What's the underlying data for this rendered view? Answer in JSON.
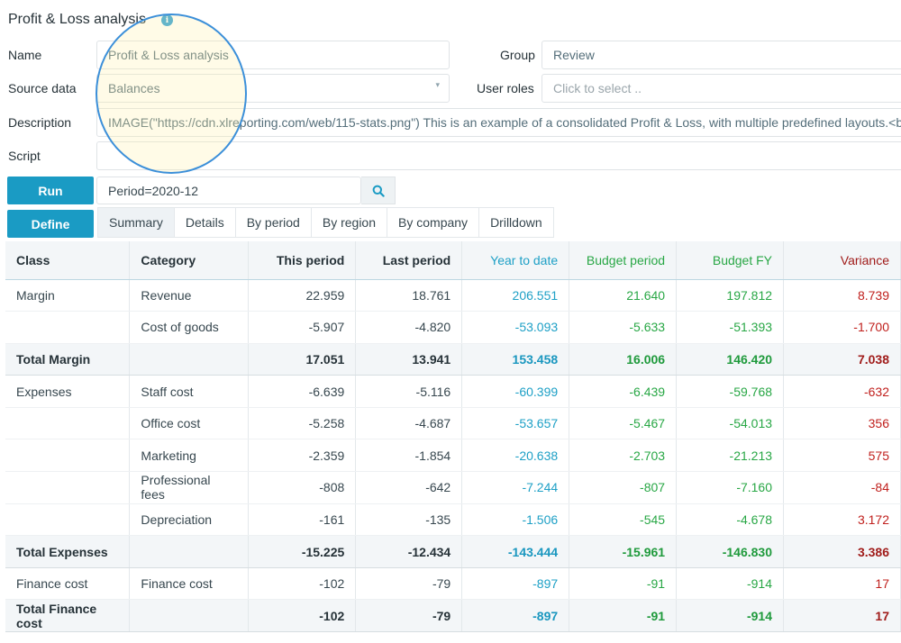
{
  "title": "Profit & Loss analysis",
  "icons": {
    "info": "info-icon",
    "search": "search-icon",
    "caret": "chevron-down-icon"
  },
  "form": {
    "name_label": "Name",
    "name_value": "Profit & Loss analysis",
    "source_label": "Source data",
    "source_value": "Balances",
    "description_label": "Description",
    "description_value": "IMAGE(\"https://cdn.xlreporting.com/web/115-stats.png\") This is an example of a consolidated Profit & Loss, with multiple predefined layouts.<b",
    "script_label": "Script",
    "script_value": "",
    "group_label": "Group",
    "group_value": "Review",
    "roles_label": "User roles",
    "roles_placeholder": "Click to select .."
  },
  "run_label": "Run",
  "define_label": "Define",
  "query_value": "Period=2020-12",
  "tabs": [
    "Summary",
    "Details",
    "By period",
    "By region",
    "By company",
    "Drilldown"
  ],
  "colors": {
    "accent": "#1a9bc4",
    "ytd": "#1ea0c6",
    "budget": "#28a745",
    "variance": "#c0201d"
  },
  "table": {
    "headers": [
      "Class",
      "Category",
      "This period",
      "Last period",
      "Year to date",
      "Budget period",
      "Budget FY",
      "Variance"
    ],
    "rows": [
      {
        "total": false,
        "cells": [
          "Margin",
          "Revenue",
          "22.959",
          "18.761",
          "206.551",
          "21.640",
          "197.812",
          "8.739"
        ]
      },
      {
        "total": false,
        "cells": [
          "",
          "Cost of goods",
          "-5.907",
          "-4.820",
          "-53.093",
          "-5.633",
          "-51.393",
          "-1.700"
        ]
      },
      {
        "total": true,
        "cells": [
          "Total Margin",
          "",
          "17.051",
          "13.941",
          "153.458",
          "16.006",
          "146.420",
          "7.038"
        ]
      },
      {
        "total": false,
        "cells": [
          "Expenses",
          "Staff cost",
          "-6.639",
          "-5.116",
          "-60.399",
          "-6.439",
          "-59.768",
          "-632"
        ]
      },
      {
        "total": false,
        "cells": [
          "",
          "Office cost",
          "-5.258",
          "-4.687",
          "-53.657",
          "-5.467",
          "-54.013",
          "356"
        ]
      },
      {
        "total": false,
        "cells": [
          "",
          "Marketing",
          "-2.359",
          "-1.854",
          "-20.638",
          "-2.703",
          "-21.213",
          "575"
        ]
      },
      {
        "total": false,
        "cells": [
          "",
          "Professional fees",
          "-808",
          "-642",
          "-7.244",
          "-807",
          "-7.160",
          "-84"
        ]
      },
      {
        "total": false,
        "cells": [
          "",
          "Depreciation",
          "-161",
          "-135",
          "-1.506",
          "-545",
          "-4.678",
          "3.172"
        ]
      },
      {
        "total": true,
        "cells": [
          "Total Expenses",
          "",
          "-15.225",
          "-12.434",
          "-143.444",
          "-15.961",
          "-146.830",
          "3.386"
        ]
      },
      {
        "total": false,
        "cells": [
          "Finance cost",
          "Finance cost",
          "-102",
          "-79",
          "-897",
          "-91",
          "-914",
          "17"
        ]
      },
      {
        "total": true,
        "cells": [
          "Total Finance cost",
          "",
          "-102",
          "-79",
          "-897",
          "-91",
          "-914",
          "17"
        ]
      }
    ]
  }
}
